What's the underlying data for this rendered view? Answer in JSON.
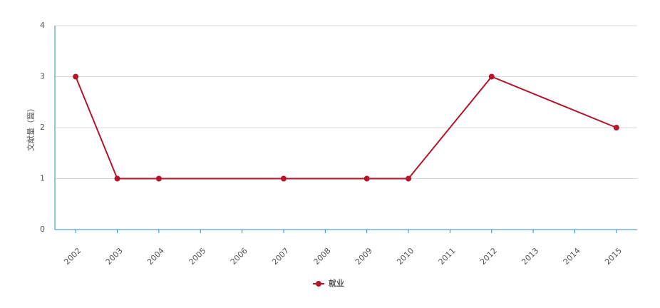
{
  "chart_data": {
    "type": "line",
    "y_label": "文献量（篇）",
    "x": [
      2002,
      2003,
      2004,
      2007,
      2009,
      2010,
      2012,
      2015
    ],
    "series": [
      {
        "name": "就业",
        "color": "#b5152b",
        "values": [
          3,
          1,
          1,
          1,
          1,
          1,
          3,
          2
        ]
      }
    ],
    "xlim": [
      2001.5,
      2015.5
    ],
    "xticks": [
      2002,
      2003,
      2004,
      2005,
      2006,
      2007,
      2008,
      2009,
      2010,
      2011,
      2012,
      2013,
      2014,
      2015
    ],
    "ylim": [
      0,
      4
    ],
    "yticks": [
      0,
      1,
      2,
      3,
      4
    ],
    "grid": true,
    "legend": "bottom"
  }
}
